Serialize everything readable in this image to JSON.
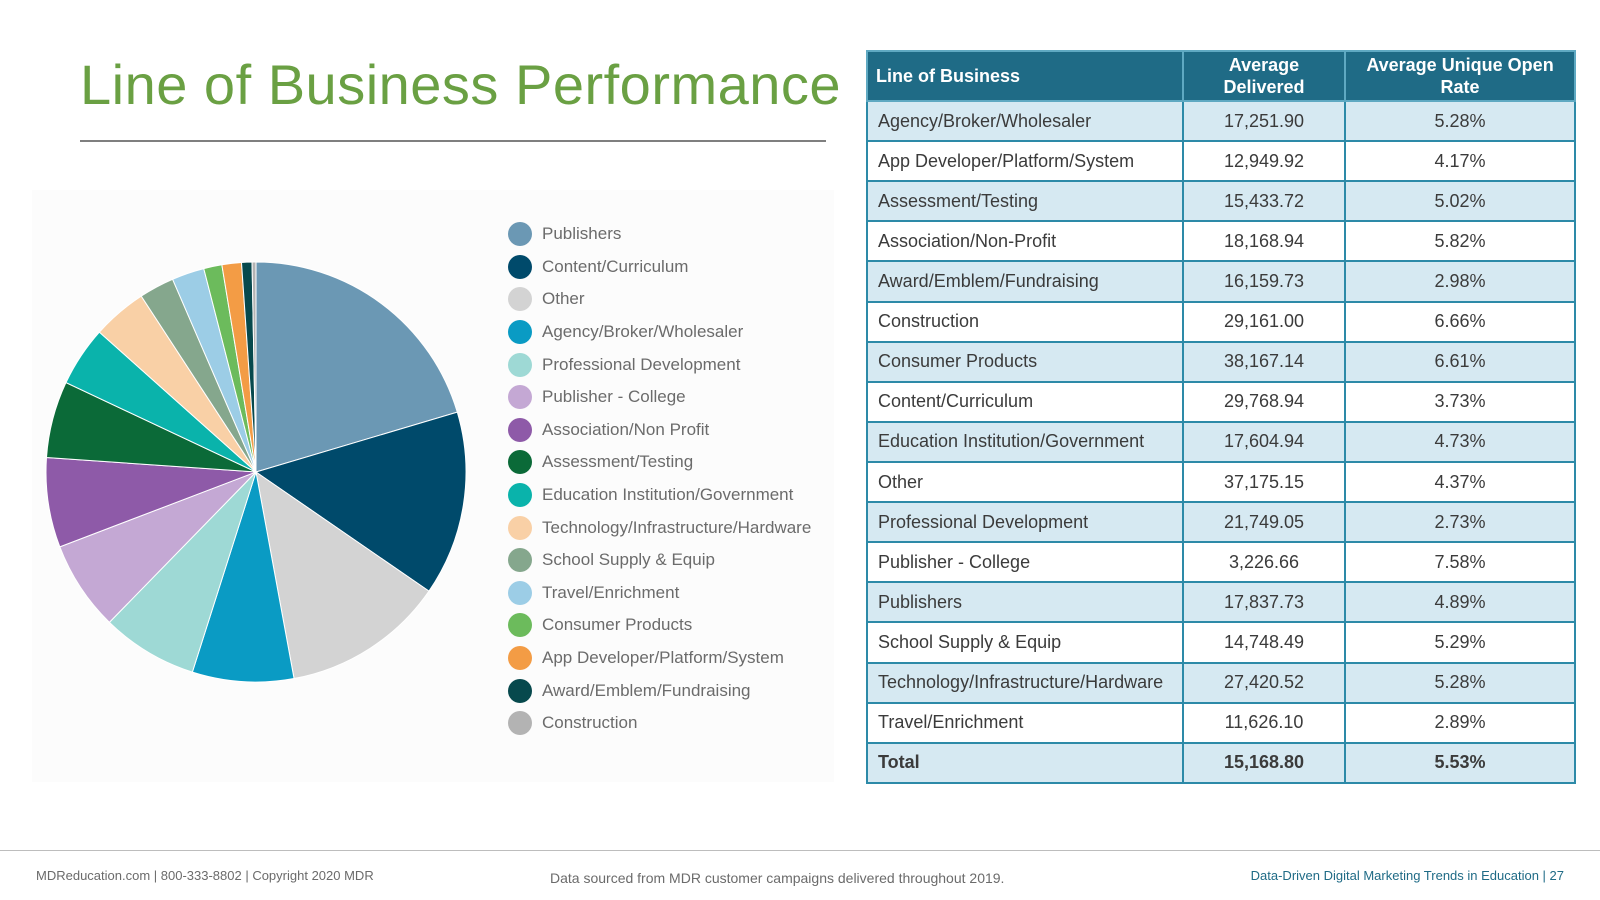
{
  "page": {
    "title": "Line of Business Performance",
    "footer_left": "MDReducation.com  |  800-333-8802  |  Copyright 2020 MDR",
    "footer_center": "Data sourced from MDR customer campaigns delivered throughout 2019.",
    "footer_right": "Data-Driven Digital Marketing Trends in Education  |  27"
  },
  "chart_data": {
    "type": "pie",
    "title": "",
    "categories": [
      "Publishers",
      "Content/Curriculum",
      "Other",
      "Agency/Broker/Wholesaler",
      "Professional Development",
      "Publisher - College",
      "Association/Non Profit",
      "Assessment/Testing",
      "Education Institution/Government",
      "Technology/Infrastructure/Hardware",
      "School Supply & Equip",
      "Travel/Enrichment",
      "Consumer Products",
      "App Developer/Platform/System",
      "Award/Emblem/Fundraising",
      "Construction"
    ],
    "values": [
      20.4,
      14.2,
      12.5,
      7.8,
      7.4,
      6.9,
      6.9,
      5.9,
      4.6,
      4.2,
      2.7,
      2.5,
      1.4,
      1.5,
      0.8,
      0.3
    ],
    "colors": [
      "#6b98b4",
      "#004a6b",
      "#d3d3d3",
      "#0a9bc4",
      "#9ed9d5",
      "#c4a8d4",
      "#8e5aa8",
      "#0b6a38",
      "#0ab3ab",
      "#f9d0a6",
      "#85a78d",
      "#9ccde6",
      "#6cbb5c",
      "#f39c45",
      "#07494d",
      "#b3b3b3"
    ],
    "legend_position": "right",
    "start_angle_deg": 0,
    "direction": "clockwise"
  },
  "table": {
    "headers": [
      "Line of Business",
      "Average Delivered",
      "Average Unique Open Rate"
    ],
    "rows": [
      [
        "Agency/Broker/Wholesaler",
        "17,251.90",
        "5.28%"
      ],
      [
        "App Developer/Platform/System",
        "12,949.92",
        "4.17%"
      ],
      [
        "Assessment/Testing",
        "15,433.72",
        "5.02%"
      ],
      [
        "Association/Non-Profit",
        "18,168.94",
        "5.82%"
      ],
      [
        "Award/Emblem/Fundraising",
        "16,159.73",
        "2.98%"
      ],
      [
        "Construction",
        "29,161.00",
        "6.66%"
      ],
      [
        "Consumer Products",
        "38,167.14",
        "6.61%"
      ],
      [
        "Content/Curriculum",
        "29,768.94",
        "3.73%"
      ],
      [
        "Education Institution/Government",
        "17,604.94",
        "4.73%"
      ],
      [
        "Other",
        "37,175.15",
        "4.37%"
      ],
      [
        "Professional Development",
        "21,749.05",
        "2.73%"
      ],
      [
        "Publisher - College",
        "3,226.66",
        "7.58%"
      ],
      [
        "Publishers",
        "17,837.73",
        "4.89%"
      ],
      [
        "School Supply & Equip",
        "14,748.49",
        "5.29%"
      ],
      [
        "Technology/Infrastructure/Hardware",
        "27,420.52",
        "5.28%"
      ],
      [
        "Travel/Enrichment",
        "11,626.10",
        "2.89%"
      ]
    ],
    "total": [
      "Total",
      "15,168.80",
      "5.53%"
    ]
  }
}
